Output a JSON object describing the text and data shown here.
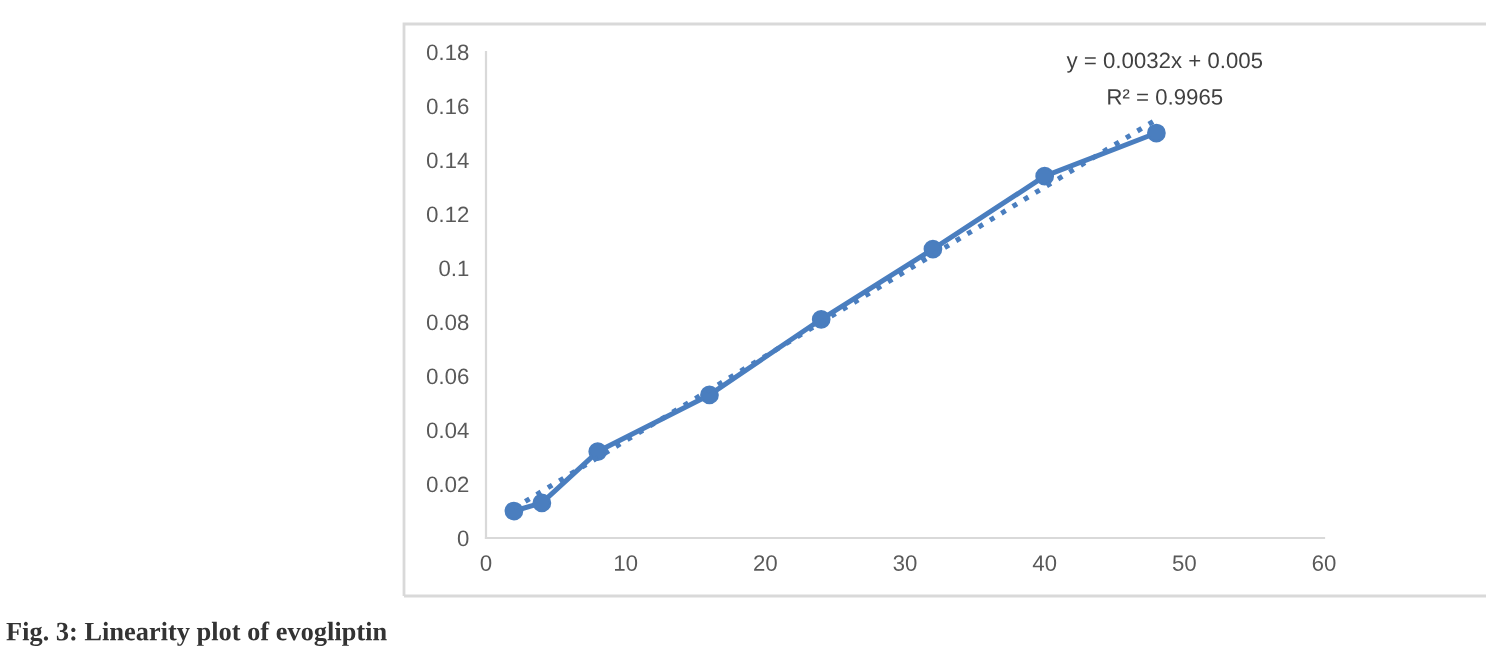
{
  "chart_data": {
    "type": "line",
    "x": [
      2,
      4,
      8,
      16,
      24,
      32,
      40,
      48
    ],
    "series": [
      {
        "color": "#4a7ebf",
        "values": [
          0.01,
          0.013,
          0.032,
          0.053,
          0.081,
          0.107,
          0.134,
          0.15
        ],
        "marker": "circle",
        "line_style": "solid"
      },
      {
        "type": "line",
        "color": "#4a7ebf",
        "x": [
          2,
          48
        ],
        "values": [
          0.011,
          0.155
        ],
        "marker": "none",
        "line_style": "dotted"
      }
    ],
    "xlim": [
      0,
      60
    ],
    "xticks": [
      0,
      10,
      20,
      30,
      40,
      50,
      60
    ],
    "ylim": [
      0,
      0.18
    ],
    "yticks": [
      0,
      0.02,
      0.04,
      0.06,
      0.08,
      0.1,
      0.12,
      0.14,
      0.16,
      0.18
    ],
    "grid": false,
    "legend": false,
    "annotations": [
      "y = 0.0032x + 0.005",
      "R² = 0.9965",
      "Fig. 3: Linearity plot of evogliptin"
    ]
  }
}
